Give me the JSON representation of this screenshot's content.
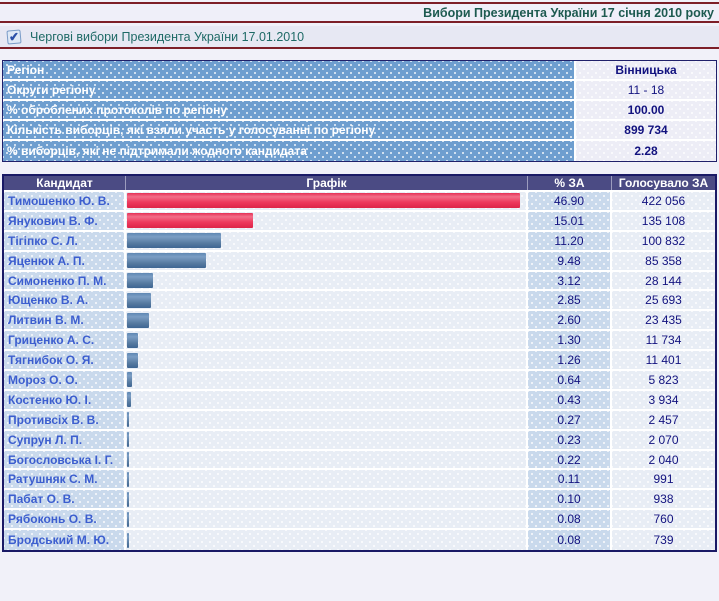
{
  "page": {
    "title": "Вибори Президента України 17 січня 2010 року",
    "election_label": "Чергові вибори Президента України 17.01.2010",
    "accent_colors": {
      "rule_maroon": "#7d1f28",
      "title_teal": "#1d5a50",
      "region_label_blue": "#6e9ecf",
      "table_header_slate": "#4b4b84",
      "bar_red": "#ee2e52",
      "bar_blue": "#4f7aa9"
    }
  },
  "region_table": {
    "rows": [
      {
        "label": "Регіон",
        "value": "Вінницька",
        "bold": true
      },
      {
        "label": "Округи регіону",
        "value": "11 - 18",
        "bold": false
      },
      {
        "label": "% оброблених протоколів по регіону",
        "value": "100.00",
        "bold": true
      },
      {
        "label": "Кількість виборців, які взяли участь у голосуванні по регіону",
        "value": "899 734",
        "bold": true
      },
      {
        "label": "% виборців, які не підтримали жодного кандидата",
        "value": "2.28",
        "bold": true
      }
    ]
  },
  "results_table": {
    "headers": [
      "Кандидат",
      "Графік",
      "% ЗА",
      "Голосувало ЗА"
    ],
    "rows": [
      {
        "name": "Тимошенко Ю. В.",
        "pct": "46.90",
        "votes": "422 056",
        "bar": "red"
      },
      {
        "name": "Янукович В. Ф.",
        "pct": "15.01",
        "votes": "135 108",
        "bar": "red"
      },
      {
        "name": "Тігіпко С. Л.",
        "pct": "11.20",
        "votes": "100 832",
        "bar": "blue"
      },
      {
        "name": "Яценюк А. П.",
        "pct": "9.48",
        "votes": "85 358",
        "bar": "blue"
      },
      {
        "name": "Симоненко П. М.",
        "pct": "3.12",
        "votes": "28 144",
        "bar": "blue"
      },
      {
        "name": "Ющенко В. А.",
        "pct": "2.85",
        "votes": "25 693",
        "bar": "blue"
      },
      {
        "name": "Литвин В. М.",
        "pct": "2.60",
        "votes": "23 435",
        "bar": "blue"
      },
      {
        "name": "Гриценко А. С.",
        "pct": "1.30",
        "votes": "11 734",
        "bar": "blue"
      },
      {
        "name": "Тягнибок О. Я.",
        "pct": "1.26",
        "votes": "11 401",
        "bar": "blue"
      },
      {
        "name": "Мороз О. О.",
        "pct": "0.64",
        "votes": "5 823",
        "bar": "blue"
      },
      {
        "name": "Костенко Ю. І.",
        "pct": "0.43",
        "votes": "3 934",
        "bar": "blue"
      },
      {
        "name": "Противсіх В. В.",
        "pct": "0.27",
        "votes": "2 457",
        "bar": "blue"
      },
      {
        "name": "Супрун Л. П.",
        "pct": "0.23",
        "votes": "2 070",
        "bar": "blue"
      },
      {
        "name": "Богословська І. Г.",
        "pct": "0.22",
        "votes": "2 040",
        "bar": "blue"
      },
      {
        "name": "Ратушняк С. М.",
        "pct": "0.11",
        "votes": "991",
        "bar": "blue"
      },
      {
        "name": "Пабат О. В.",
        "pct": "0.10",
        "votes": "938",
        "bar": "blue"
      },
      {
        "name": "Рябоконь О. В.",
        "pct": "0.08",
        "votes": "760",
        "bar": "blue"
      },
      {
        "name": "Бродський М. Ю.",
        "pct": "0.08",
        "votes": "739",
        "bar": "blue"
      }
    ]
  },
  "chart_data": {
    "type": "bar",
    "orientation": "horizontal",
    "title": "Графік",
    "categories": [
      "Тимошенко Ю. В.",
      "Янукович В. Ф.",
      "Тігіпко С. Л.",
      "Яценюк А. П.",
      "Симоненко П. М.",
      "Ющенко В. А.",
      "Литвин В. М.",
      "Гриценко А. С.",
      "Тягнибок О. Я.",
      "Мороз О. О.",
      "Костенко Ю. І.",
      "Противсіх В. В.",
      "Супрун Л. П.",
      "Богословська І. Г.",
      "Ратушняк С. М.",
      "Пабат О. В.",
      "Рябоконь О. В.",
      "Бродський М. Ю."
    ],
    "values": [
      46.9,
      15.01,
      11.2,
      9.48,
      3.12,
      2.85,
      2.6,
      1.3,
      1.26,
      0.64,
      0.43,
      0.27,
      0.23,
      0.22,
      0.11,
      0.1,
      0.08,
      0.08
    ],
    "votes": [
      422056,
      135108,
      100832,
      85358,
      28144,
      25693,
      23435,
      11734,
      11401,
      5823,
      3934,
      2457,
      2070,
      2040,
      991,
      938,
      760,
      739
    ],
    "bar_color_keys": [
      "red",
      "red",
      "blue",
      "blue",
      "blue",
      "blue",
      "blue",
      "blue",
      "blue",
      "blue",
      "blue",
      "blue",
      "blue",
      "blue",
      "blue",
      "blue",
      "blue",
      "blue"
    ],
    "xlabel": "% ЗА",
    "xlim": [
      0,
      47.75
    ],
    "grid": false,
    "legend": "none"
  }
}
